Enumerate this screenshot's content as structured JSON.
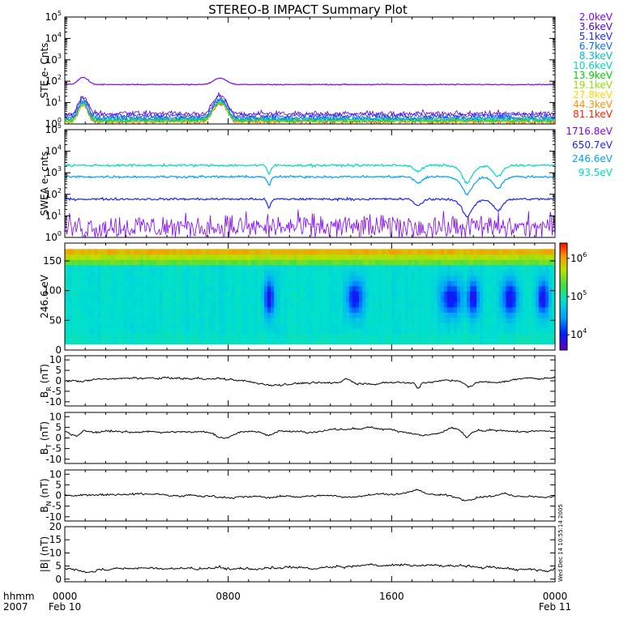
{
  "title": "STEREO-B IMPACT Summary Plot",
  "side_stamp": "Wed Dec 14 10:55:14 2005",
  "x_axis": {
    "range_hours": [
      0,
      24
    ],
    "ticks": [
      {
        "hour": 0,
        "top": "0000",
        "bottom": "Feb 10"
      },
      {
        "hour": 8,
        "top": "0800",
        "bottom": ""
      },
      {
        "hour": 16,
        "top": "1600",
        "bottom": ""
      },
      {
        "hour": 24,
        "top": "0000",
        "bottom": "Feb 11"
      }
    ],
    "corner_top": "hhmm",
    "corner_bottom": "2007"
  },
  "chart_data": [
    {
      "id": "ste",
      "type": "line",
      "ylabel": "STE e- Cnts",
      "yscale": "log",
      "ylim_exp": [
        0,
        5
      ],
      "ytick_exps": [
        0,
        1,
        2,
        3,
        4,
        5
      ],
      "series": [
        {
          "name": "2.0keV",
          "color": "#8000ff",
          "level": 70
        },
        {
          "name": "3.6keV",
          "color": "#5a00e0",
          "level": 2.5
        },
        {
          "name": "5.1keV",
          "color": "#1a28ff",
          "level": 2.0
        },
        {
          "name": "6.7keV",
          "color": "#0070ff",
          "level": 1.6
        },
        {
          "name": "8.3keV",
          "color": "#00b8d8",
          "level": 1.4
        },
        {
          "name": "10.6keV",
          "color": "#00d8b0",
          "level": 1.3
        },
        {
          "name": "13.9keV",
          "color": "#00d000",
          "level": 1.2
        },
        {
          "name": "19.1keV",
          "color": "#90e000",
          "level": 1.15
        },
        {
          "name": "27.8keV",
          "color": "#ffd800",
          "level": 1.1
        },
        {
          "name": "44.3keV",
          "color": "#ff9000",
          "level": 1.3
        },
        {
          "name": "81.1keV",
          "color": "#ff2000",
          "level": 1.05
        }
      ]
    },
    {
      "id": "swea",
      "type": "line",
      "ylabel": "SWEA e- cnts",
      "yscale": "log",
      "ylim_exp": [
        0,
        5
      ],
      "ytick_exps": [
        0,
        1,
        2,
        3,
        4,
        5
      ],
      "series": [
        {
          "name": "1716.8eV",
          "color": "#8000ff",
          "level": 3
        },
        {
          "name": "650.7eV",
          "color": "#1a28ff",
          "level": 60
        },
        {
          "name": "246.6eV",
          "color": "#00a0ff",
          "level": 650
        },
        {
          "name": "93.5eV",
          "color": "#00d8c0",
          "level": 2200
        }
      ]
    },
    {
      "id": "pad",
      "type": "heatmap",
      "ylabel": "246.6 eV",
      "ylim": [
        0,
        180
      ],
      "yticks": [
        0,
        50,
        100,
        150
      ],
      "colorbar_exp": [
        3.6,
        6.4
      ],
      "colorbar_ticks_exp": [
        4,
        5,
        6
      ]
    },
    {
      "id": "br",
      "type": "line",
      "ylabel_main": "B",
      "ylabel_sub": "R",
      "ylabel_unit": "(nT)",
      "ylim": [
        -12,
        12
      ],
      "yticks": [
        -10,
        -5,
        0,
        5,
        10
      ],
      "baseline": 0
    },
    {
      "id": "bt",
      "type": "line",
      "ylabel_main": "B",
      "ylabel_sub": "T",
      "ylabel_unit": "(nT)",
      "ylim": [
        -12,
        12
      ],
      "yticks": [
        -10,
        -5,
        0,
        5,
        10
      ],
      "baseline": 3
    },
    {
      "id": "bn",
      "type": "line",
      "ylabel_main": "B",
      "ylabel_sub": "N",
      "ylabel_unit": "(nT)",
      "ylim": [
        -12,
        12
      ],
      "yticks": [
        -10,
        -5,
        0,
        5,
        10
      ],
      "baseline": 0
    },
    {
      "id": "bmag",
      "type": "line",
      "ylabel": "|B| (nT)",
      "ylim": [
        -1,
        20
      ],
      "yticks": [
        0,
        5,
        10,
        15,
        20
      ],
      "baseline": 3
    }
  ]
}
